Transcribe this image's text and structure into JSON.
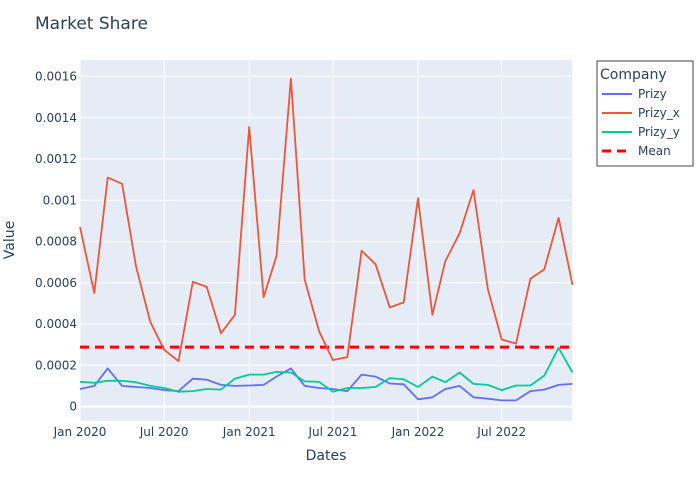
{
  "chart_data": {
    "type": "line",
    "title": "Market Share",
    "xlabel": "Dates",
    "ylabel": "Value",
    "xlim": [
      "2020-01-01",
      "2022-11-30"
    ],
    "ylim": [
      -7e-05,
      0.00168
    ],
    "x_ticks": [
      {
        "date": "2020-01-01",
        "label": "Jan 2020"
      },
      {
        "date": "2020-07-01",
        "label": "Jul 2020"
      },
      {
        "date": "2021-01-01",
        "label": "Jan 2021"
      },
      {
        "date": "2021-07-01",
        "label": "Jul 2021"
      },
      {
        "date": "2022-01-01",
        "label": "Jan 2022"
      },
      {
        "date": "2022-07-01",
        "label": "Jul 2022"
      }
    ],
    "y_ticks": [
      {
        "value": 0,
        "label": "0"
      },
      {
        "value": 0.0002,
        "label": "0.0002"
      },
      {
        "value": 0.0004,
        "label": "0.0004"
      },
      {
        "value": 0.0006,
        "label": "0.0006"
      },
      {
        "value": 0.0008,
        "label": "0.0008"
      },
      {
        "value": 0.001,
        "label": "0.001"
      },
      {
        "value": 0.0012,
        "label": "0.0012"
      },
      {
        "value": 0.0014,
        "label": "0.0014"
      },
      {
        "value": 0.0016,
        "label": "0.0016"
      }
    ],
    "grid": true,
    "legend": {
      "title": "Company",
      "placement": "top-right-outside"
    },
    "x": [
      "2020-01-01",
      "2020-02-01",
      "2020-03-01",
      "2020-04-01",
      "2020-05-01",
      "2020-06-01",
      "2020-07-01",
      "2020-08-01",
      "2020-09-01",
      "2020-10-01",
      "2020-11-01",
      "2020-12-01",
      "2021-01-01",
      "2021-02-01",
      "2021-03-01",
      "2021-04-01",
      "2021-05-01",
      "2021-06-01",
      "2021-07-01",
      "2021-08-01",
      "2021-09-01",
      "2021-10-01",
      "2021-11-01",
      "2021-12-01",
      "2022-01-01",
      "2022-02-01",
      "2022-03-01",
      "2022-04-01",
      "2022-05-01",
      "2022-06-01",
      "2022-07-01",
      "2022-08-01",
      "2022-09-01",
      "2022-10-01",
      "2022-11-01",
      "2022-12-01"
    ],
    "series": [
      {
        "name": "Prizy",
        "color": "#636efa",
        "dash": "solid",
        "values": [
          8.5e-05,
          0.0001,
          0.000185,
          0.0001,
          9.5e-05,
          9e-05,
          8e-05,
          7.5e-05,
          0.000135,
          0.00013,
          0.000105,
          0.0001,
          0.000102,
          0.000105,
          0.000145,
          0.000185,
          0.0001,
          9e-05,
          8.5e-05,
          7.5e-05,
          0.000155,
          0.000145,
          0.000112,
          0.000108,
          3.5e-05,
          4.5e-05,
          8.5e-05,
          0.0001,
          4.5e-05,
          3.8e-05,
          3e-05,
          3e-05,
          7.5e-05,
          8.2e-05,
          0.000105,
          0.00011
        ]
      },
      {
        "name": "Prizy_x",
        "color": "#ef553b",
        "dash": "solid",
        "values": [
          0.00087,
          0.00055,
          0.00111,
          0.00108,
          0.00068,
          0.00041,
          0.000275,
          0.00022,
          0.000605,
          0.00058,
          0.000355,
          0.000445,
          0.001355,
          0.00053,
          0.00073,
          0.00159,
          0.000615,
          0.000365,
          0.000225,
          0.00024,
          0.000755,
          0.00069,
          0.00048,
          0.000505,
          0.00101,
          0.000445,
          0.000705,
          0.00084,
          0.00105,
          0.00057,
          0.000325,
          0.000305,
          0.00062,
          0.000665,
          0.000915,
          0.00059
        ]
      },
      {
        "name": "Prizy_y",
        "color": "#00cc96",
        "dash": "solid",
        "values": [
          0.00012,
          0.000115,
          0.000125,
          0.000125,
          0.000118,
          0.0001,
          9e-05,
          7.2e-05,
          7.5e-05,
          8.5e-05,
          8.2e-05,
          0.000135,
          0.000155,
          0.000155,
          0.000168,
          0.000165,
          0.000122,
          0.00012,
          7.2e-05,
          9e-05,
          9e-05,
          9.5e-05,
          0.000138,
          0.000132,
          9.5e-05,
          0.000145,
          0.000118,
          0.000165,
          0.00011,
          0.000105,
          8e-05,
          0.000102,
          0.000102,
          0.00015,
          0.000285,
          0.000165
        ]
      }
    ],
    "mean": {
      "name": "Mean",
      "color": "#ff0000",
      "dash": "dash",
      "value": 0.000288
    }
  }
}
